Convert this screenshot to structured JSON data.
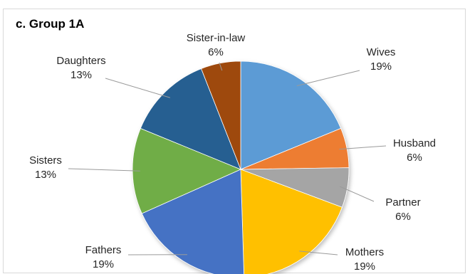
{
  "chart_data": {
    "type": "pie",
    "title": "c. Group 1A",
    "slices": [
      {
        "label": "Wives",
        "value": 19,
        "value_label": "19%",
        "color": "#5b9bd5"
      },
      {
        "label": "Husband",
        "value": 6,
        "value_label": "6%",
        "color": "#ed7d31"
      },
      {
        "label": "Partner",
        "value": 6,
        "value_label": "6%",
        "color": "#a5a5a5"
      },
      {
        "label": "Mothers",
        "value": 19,
        "value_label": "19%",
        "color": "#ffc000"
      },
      {
        "label": "Fathers",
        "value": 19,
        "value_label": "19%",
        "color": "#4472c4"
      },
      {
        "label": "Sisters",
        "value": 13,
        "value_label": "13%",
        "color": "#70ad47"
      },
      {
        "label": "Daughters",
        "value": 13,
        "value_label": "13%",
        "color": "#255e91"
      },
      {
        "label": "Sister-in-law",
        "value": 6,
        "value_label": "6%",
        "color": "#9e480e"
      }
    ],
    "legend": "none"
  }
}
